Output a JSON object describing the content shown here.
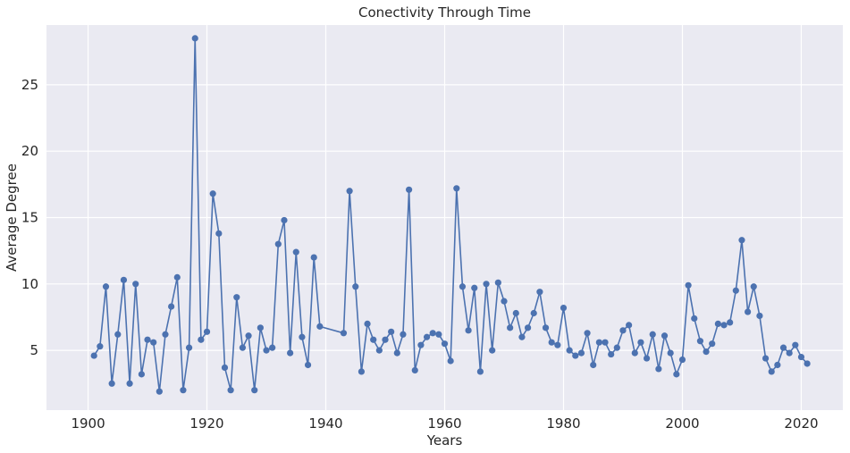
{
  "chart_data": {
    "type": "line",
    "title": "Conectivity Through Time",
    "xlabel": "Years",
    "ylabel": "Average Degree",
    "xlim": [
      1893,
      2027
    ],
    "ylim": [
      0.5,
      29.5
    ],
    "xticks": [
      1900,
      1920,
      1940,
      1960,
      1980,
      2000,
      2020
    ],
    "yticks": [
      5,
      10,
      15,
      20,
      25
    ],
    "grid": true,
    "background": "#eaeaf2",
    "line_color": "#4c72b0",
    "series": [
      {
        "x": [
          1901,
          1902,
          1903,
          1904,
          1905,
          1906,
          1907,
          1908,
          1909,
          1910,
          1911,
          1912,
          1913,
          1914,
          1915,
          1916,
          1917,
          1918,
          1919,
          1920,
          1921,
          1922,
          1923,
          1924,
          1925,
          1926,
          1927,
          1928,
          1929,
          1930,
          1931,
          1932,
          1933,
          1934,
          1935,
          1936,
          1937,
          1938,
          1939,
          1943,
          1944,
          1945,
          1946,
          1947,
          1948,
          1949,
          1950,
          1951,
          1952,
          1953,
          1954,
          1955,
          1956,
          1957,
          1958,
          1959,
          1960,
          1961,
          1962,
          1963,
          1964,
          1965,
          1966,
          1967,
          1968,
          1969,
          1970,
          1971,
          1972,
          1973,
          1974,
          1975,
          1976,
          1977,
          1978,
          1979,
          1980,
          1981,
          1982,
          1983,
          1984,
          1985,
          1986,
          1987,
          1988,
          1989,
          1990,
          1991,
          1992,
          1993,
          1994,
          1995,
          1996,
          1997,
          1998,
          1999,
          2000,
          2001,
          2002,
          2003,
          2004,
          2005,
          2006,
          2007,
          2008,
          2009,
          2010,
          2011,
          2012,
          2013,
          2014,
          2015,
          2016,
          2017,
          2018,
          2019,
          2020,
          2021
        ],
        "y": [
          4.6,
          5.3,
          9.8,
          2.5,
          6.2,
          10.3,
          2.5,
          10.0,
          3.2,
          5.8,
          5.6,
          1.9,
          6.2,
          8.3,
          10.5,
          2.0,
          5.2,
          28.5,
          5.8,
          6.4,
          16.8,
          13.8,
          3.7,
          2.0,
          9.0,
          5.2,
          6.1,
          2.0,
          6.7,
          5.0,
          5.2,
          13.0,
          14.8,
          4.8,
          12.4,
          6.0,
          3.9,
          12.0,
          6.8,
          6.3,
          17.0,
          9.8,
          3.4,
          7.0,
          5.8,
          5.0,
          5.8,
          6.4,
          4.8,
          6.2,
          17.1,
          3.5,
          5.4,
          6.0,
          6.3,
          6.2,
          5.5,
          4.2,
          17.2,
          9.8,
          6.5,
          9.7,
          3.4,
          10.0,
          5.0,
          10.1,
          8.7,
          6.7,
          7.8,
          6.0,
          6.7,
          7.8,
          9.4,
          6.7,
          5.6,
          5.4,
          8.2,
          5.0,
          4.6,
          4.8,
          6.3,
          3.9,
          5.6,
          5.6,
          4.7,
          5.2,
          6.5,
          6.9,
          4.8,
          5.6,
          4.4,
          6.2,
          3.6,
          6.1,
          4.8,
          3.2,
          4.3,
          9.9,
          7.4,
          5.7,
          4.9,
          5.5,
          7.0,
          6.9,
          7.1,
          9.5,
          13.3,
          7.9,
          9.8,
          7.6,
          4.4,
          3.4,
          3.9,
          5.2,
          4.8,
          5.4,
          4.5,
          4.0
        ]
      }
    ]
  }
}
